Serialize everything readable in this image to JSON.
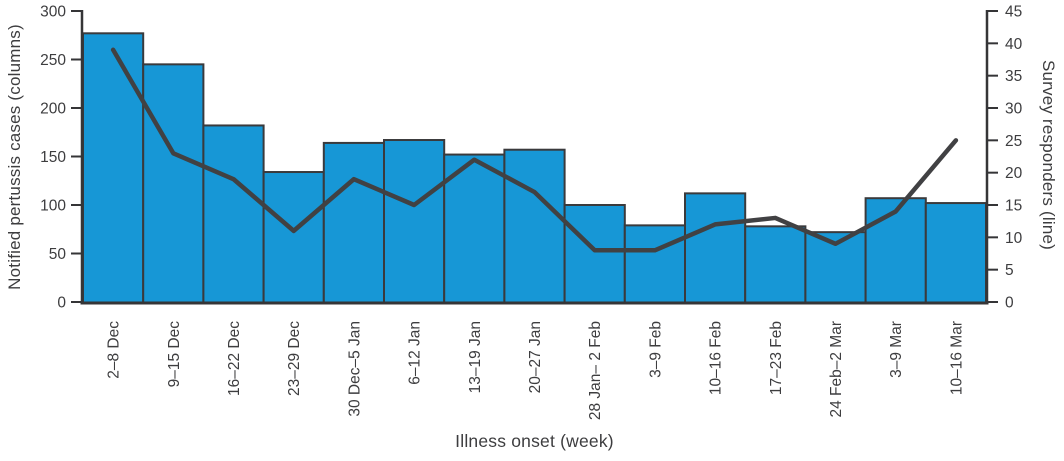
{
  "figure": {
    "x_title": "Illness onset (week)",
    "y_left_title": "Notified pertussis cases (columns)",
    "y_right_title": "Survey responders (line)"
  },
  "chart_data": {
    "type": "bar",
    "subtype": "bar-and-line-dual-axis",
    "title": "",
    "xlabel": "Illness onset (week)",
    "categories": [
      "2–8 Dec",
      "9–15 Dec",
      "16–22 Dec",
      "23–29 Dec",
      "30 Dec–5 Jan",
      "6–12 Jan",
      "13–19 Jan",
      "20–27 Jan",
      "28 Jan– 2 Feb",
      "3–9 Feb",
      "10–16 Feb",
      "17–23 Feb",
      "24 Feb–2 Mar",
      "3–9 Mar",
      "10–16 Mar"
    ],
    "series": [
      {
        "name": "Notified pertussis cases",
        "type": "bar",
        "axis": "left",
        "values": [
          277,
          245,
          182,
          134,
          164,
          167,
          152,
          157,
          100,
          79,
          112,
          78,
          72,
          107,
          102
        ]
      },
      {
        "name": "Survey responders",
        "type": "line",
        "axis": "right",
        "values": [
          39,
          23,
          19,
          11,
          19,
          15,
          22,
          17,
          8,
          8,
          12,
          13,
          9,
          14,
          25
        ]
      }
    ],
    "left_axis": {
      "label": "Notified pertussis cases (columns)",
      "min": 0,
      "max": 300,
      "tick_step": 50
    },
    "right_axis": {
      "label": "Survey responders (line)",
      "min": 0,
      "max": 45,
      "tick_step": 5
    },
    "grid": false,
    "legend_position": "none",
    "colors": {
      "bar_fill": "#1797d6",
      "bar_stroke": "#3a3a3c",
      "line": "#414143",
      "axis": "#353537",
      "text": "#3d3d3f"
    }
  }
}
